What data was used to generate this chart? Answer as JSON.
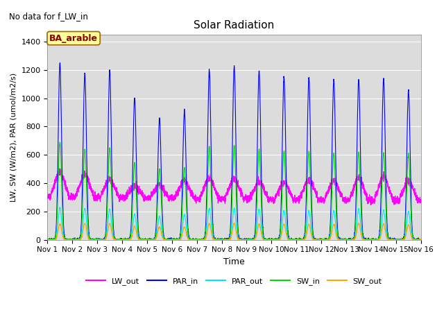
{
  "title": "Solar Radiation",
  "top_left_text": "No data for f_LW_in",
  "site_label": "BA_arable",
  "xlabel": "Time",
  "ylabel": "LW, SW (W/m2), PAR (umol/m2/s)",
  "ylim": [
    0,
    1450
  ],
  "xlim_days": [
    0,
    15
  ],
  "background_color": "#dcdcdc",
  "line_colors": {
    "LW_out": "#ff00ff",
    "PAR_in": "#0000ff",
    "PAR_out": "#00e5ff",
    "SW_in": "#00dd00",
    "SW_out": "#ffa500"
  },
  "xtick_labels": [
    "Nov 1",
    "Nov 2",
    "Nov 3",
    "Nov 4",
    "Nov 5",
    "Nov 6",
    "Nov 7",
    "Nov 8",
    "Nov 9",
    "Nov 10",
    "Nov 11",
    "Nov 12",
    "Nov 13",
    "Nov 14",
    "Nov 15",
    "Nov 16"
  ],
  "ytick_vals": [
    0,
    200,
    400,
    600,
    800,
    1000,
    1200,
    1400
  ],
  "n_days": 15,
  "samples_per_day": 288,
  "par_in_peaks": [
    1255,
    1175,
    1195,
    1000,
    855,
    905,
    1200,
    1225,
    1190,
    1150,
    1145,
    1130,
    1130,
    1135,
    1055
  ],
  "par_out_peaks": [
    228,
    222,
    218,
    182,
    165,
    178,
    222,
    222,
    215,
    208,
    205,
    205,
    218,
    210,
    200
  ],
  "sw_in_peaks": [
    690,
    637,
    648,
    542,
    500,
    510,
    662,
    668,
    640,
    628,
    625,
    615,
    618,
    617,
    610
  ],
  "sw_out_peaks": [
    112,
    116,
    116,
    96,
    90,
    90,
    115,
    117,
    111,
    111,
    110,
    110,
    116,
    112,
    106
  ],
  "lw_out_day_peaks": [
    480,
    460,
    430,
    380,
    390,
    420,
    440,
    430,
    410,
    410,
    430,
    420,
    440,
    450,
    420
  ],
  "lw_out_night_base": 305
}
